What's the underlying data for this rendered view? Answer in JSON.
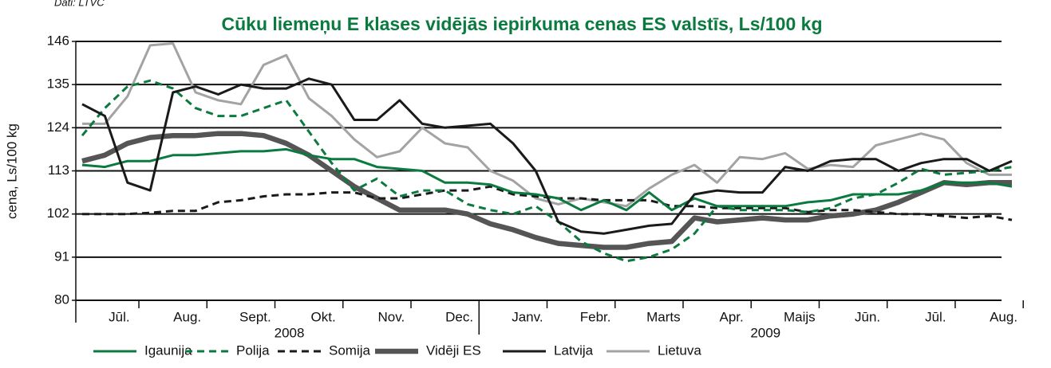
{
  "source": "Dati: LTVC",
  "chart_data": {
    "type": "line",
    "title": "Cūku liemeņu E klases vidējās iepirkuma cenas ES valstīs, Ls/100 kg",
    "y_label": "cena, Ls/100 kg",
    "categories": [
      null,
      "Jūl.",
      null,
      null,
      "Aug.",
      null,
      null,
      "Sept.",
      null,
      null,
      "Okt.",
      null,
      null,
      "Nov.",
      null,
      null,
      "Dec.",
      null,
      null,
      "Janv.",
      null,
      null,
      "Febr.",
      null,
      null,
      "Marts",
      null,
      null,
      "Apr.",
      null,
      null,
      "Maijs",
      null,
      null,
      "Jūn.",
      null,
      null,
      "Jūl.",
      null,
      null,
      "Aug.",
      null
    ],
    "year_labels": [
      "2008",
      "2009"
    ],
    "ylim": [
      80,
      146
    ],
    "yticks": [
      80,
      91,
      102,
      113,
      124,
      135,
      146
    ],
    "grid": true,
    "legend": "bottom",
    "series": [
      {
        "name": "Igaunija",
        "color": "#0b7a3e",
        "dash": "solid",
        "values": [
          114.5,
          114,
          115.5,
          115.5,
          117,
          117,
          117.5,
          118,
          118,
          118.5,
          117,
          116,
          116,
          114,
          113.5,
          113,
          110,
          110,
          109.5,
          107.5,
          107,
          106,
          103,
          105.5,
          103,
          107.5,
          103,
          106,
          104,
          104,
          104,
          104,
          105,
          105.5,
          107,
          107,
          107,
          108,
          110,
          110,
          110,
          109
        ]
      },
      {
        "name": "Polija",
        "color": "#0b7a3e",
        "dash": "dashed",
        "values": [
          122,
          129,
          134.5,
          136,
          134,
          129,
          127,
          127,
          129,
          131,
          123,
          115,
          108,
          111,
          106.5,
          108,
          108,
          104.5,
          103,
          102,
          104,
          100,
          95,
          92,
          90,
          91,
          93,
          97,
          104,
          103,
          103,
          103,
          102.5,
          103.5,
          106,
          107,
          110,
          113.5,
          112,
          112.5,
          113,
          114
        ]
      },
      {
        "name": "Somija",
        "color": "#1a1a1a",
        "dash": "dashed",
        "values": [
          102,
          102,
          102,
          102.3,
          102.8,
          102.8,
          105,
          105.5,
          106.5,
          107,
          107,
          107.5,
          107.5,
          106,
          106,
          107,
          108,
          108,
          109,
          107,
          106.5,
          106,
          106,
          105.5,
          105.5,
          105.5,
          104,
          104,
          103.5,
          103.5,
          103.5,
          103.5,
          102.5,
          103,
          103,
          102.5,
          102,
          102,
          101.5,
          101,
          101.5,
          100.5
        ]
      },
      {
        "name": "Vidēji ES",
        "color": "#555555",
        "dash": "thick",
        "values": [
          115.5,
          117,
          120,
          121.5,
          122,
          122,
          122.5,
          122.5,
          122,
          120,
          117,
          113,
          109,
          106,
          103,
          103,
          103,
          102,
          99.5,
          98,
          96,
          94.5,
          94,
          93.5,
          93.5,
          94.5,
          95,
          101,
          100,
          100.5,
          101,
          100.5,
          100.5,
          101.5,
          102,
          103,
          105,
          107.5,
          110,
          109.5,
          110,
          110
        ]
      },
      {
        "name": "Latvija",
        "color": "#1a1a1a",
        "dash": "solid",
        "values": [
          130,
          127,
          110,
          108,
          133,
          134.5,
          132.5,
          135,
          134,
          134,
          136.5,
          135,
          126,
          126,
          131,
          125,
          124,
          124.5,
          125,
          120,
          113,
          100,
          97.5,
          97,
          98,
          99,
          99.5,
          107,
          108,
          107.5,
          107.5,
          114,
          113,
          115.5,
          116,
          116,
          113,
          115,
          116,
          116,
          113,
          115.5
        ]
      },
      {
        "name": "Lietuva",
        "color": "#a3a3a3",
        "dash": "solid",
        "values": [
          125,
          125,
          132,
          145,
          145.5,
          133,
          131,
          130,
          140,
          142.5,
          131.5,
          127,
          121,
          116.5,
          118,
          124,
          120,
          119,
          113,
          110.5,
          106,
          104.5,
          106,
          105,
          104,
          108.5,
          112,
          114.5,
          110,
          116.5,
          116,
          117.5,
          113.5,
          114.5,
          114,
          119.5,
          121,
          122.5,
          121,
          115,
          112,
          112
        ]
      }
    ]
  }
}
